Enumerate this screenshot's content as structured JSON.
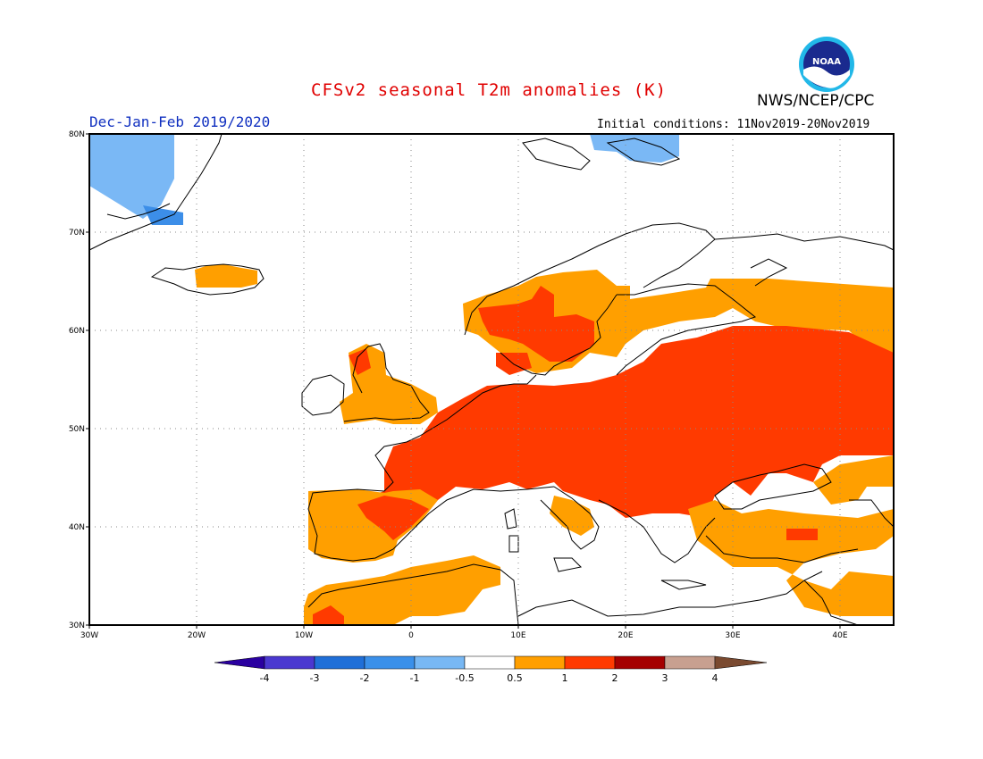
{
  "header": {
    "title": "CFSv2 seasonal T2m anomalies (K)",
    "agency": "NWS/NCEP/CPC",
    "season": "Dec-Jan-Feb 2019/2020",
    "initial_conditions": "Initial conditions: 11Nov2019-20Nov2019",
    "logo_text": "NOAA"
  },
  "map": {
    "lon_range": [
      -30,
      45
    ],
    "lat_range": [
      30,
      80
    ],
    "lon_labels": [
      "30W",
      "20W",
      "10W",
      "0",
      "10E",
      "20E",
      "30E",
      "40E"
    ],
    "lat_labels": [
      "30N",
      "40N",
      "50N",
      "60N",
      "70N",
      "80N"
    ]
  },
  "colorbar": {
    "labels": [
      "-4",
      "-3",
      "-2",
      "-1",
      "-0.5",
      "0.5",
      "1",
      "2",
      "3",
      "4"
    ],
    "colors": [
      "#2a00a0",
      "#4a38d0",
      "#1f6fd8",
      "#3a90ea",
      "#78b8f4",
      "#ffffff",
      "#ff9f00",
      "#ff3a00",
      "#a50000",
      "#c8a090",
      "#7a4a30"
    ]
  }
}
